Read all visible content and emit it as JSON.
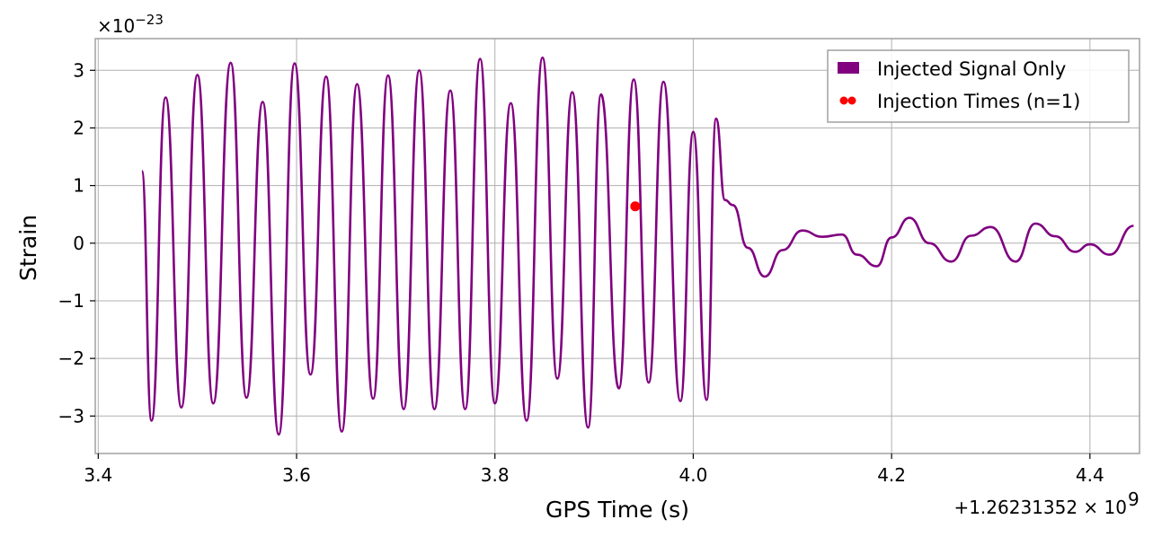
{
  "chart_data": {
    "type": "line",
    "xlabel": "GPS Time (s)",
    "ylabel": "Strain",
    "x_offset_label": "+1.26231352 × 10",
    "x_offset_exponent": "9",
    "y_scale_label": "×10",
    "y_scale_exponent": "−23",
    "xlim": [
      3.397,
      4.45
    ],
    "ylim": [
      -3.65,
      3.55
    ],
    "x_ticks": [
      3.4,
      3.6,
      3.8,
      4.0,
      4.2,
      4.4
    ],
    "x_tick_labels": [
      "3.4",
      "3.6",
      "3.8",
      "4.0",
      "4.2",
      "4.4"
    ],
    "y_ticks": [
      -3,
      -2,
      -1,
      0,
      1,
      2,
      3
    ],
    "y_tick_labels": [
      "−3",
      "−2",
      "−1",
      "0",
      "1",
      "2",
      "3"
    ],
    "grid": true,
    "legend_position": "top-right",
    "series": [
      {
        "name": "Injected Signal Only",
        "color": "#800080",
        "kind": "line",
        "x": [
          3.444,
          3.4537,
          3.468,
          3.4838,
          3.5,
          3.516,
          3.5336,
          3.5495,
          3.5658,
          3.582,
          3.598,
          3.614,
          3.6298,
          3.6456,
          3.661,
          3.6772,
          3.6922,
          3.708,
          3.7237,
          3.739,
          3.755,
          3.77,
          3.785,
          3.8,
          3.816,
          3.832,
          3.848,
          3.863,
          3.878,
          3.894,
          3.907,
          3.925,
          3.94,
          3.955,
          3.97,
          3.987,
          4.0,
          4.0135,
          4.023,
          4.032,
          4.04,
          4.055,
          4.072,
          4.09,
          4.11,
          4.13,
          4.15,
          4.165,
          4.185,
          4.2,
          4.218,
          4.238,
          4.26,
          4.28,
          4.3,
          4.325,
          4.345,
          4.365,
          4.385,
          4.4,
          4.42,
          4.444
        ],
        "y": [
          1.25,
          -3.08,
          2.53,
          -2.85,
          2.92,
          -2.78,
          3.13,
          -2.68,
          2.45,
          -3.32,
          3.12,
          -2.28,
          2.89,
          -3.27,
          2.76,
          -2.7,
          2.91,
          -2.88,
          3.0,
          -2.88,
          2.65,
          -2.88,
          3.2,
          -2.78,
          2.43,
          -3.08,
          3.22,
          -2.35,
          2.62,
          -3.2,
          2.58,
          -2.52,
          2.84,
          -2.42,
          2.8,
          -2.74,
          1.93,
          -2.72,
          2.16,
          0.75,
          0.66,
          -0.08,
          -0.58,
          -0.12,
          0.22,
          0.11,
          0.15,
          -0.2,
          -0.4,
          0.1,
          0.44,
          0.0,
          -0.32,
          0.13,
          0.28,
          -0.32,
          0.34,
          0.12,
          -0.15,
          -0.02,
          -0.2,
          0.3
        ]
      },
      {
        "name": "Injection Times (n=1)",
        "color": "#ff0000",
        "kind": "scatter",
        "x": [
          3.9415
        ],
        "y": [
          0.64
        ]
      }
    ]
  }
}
